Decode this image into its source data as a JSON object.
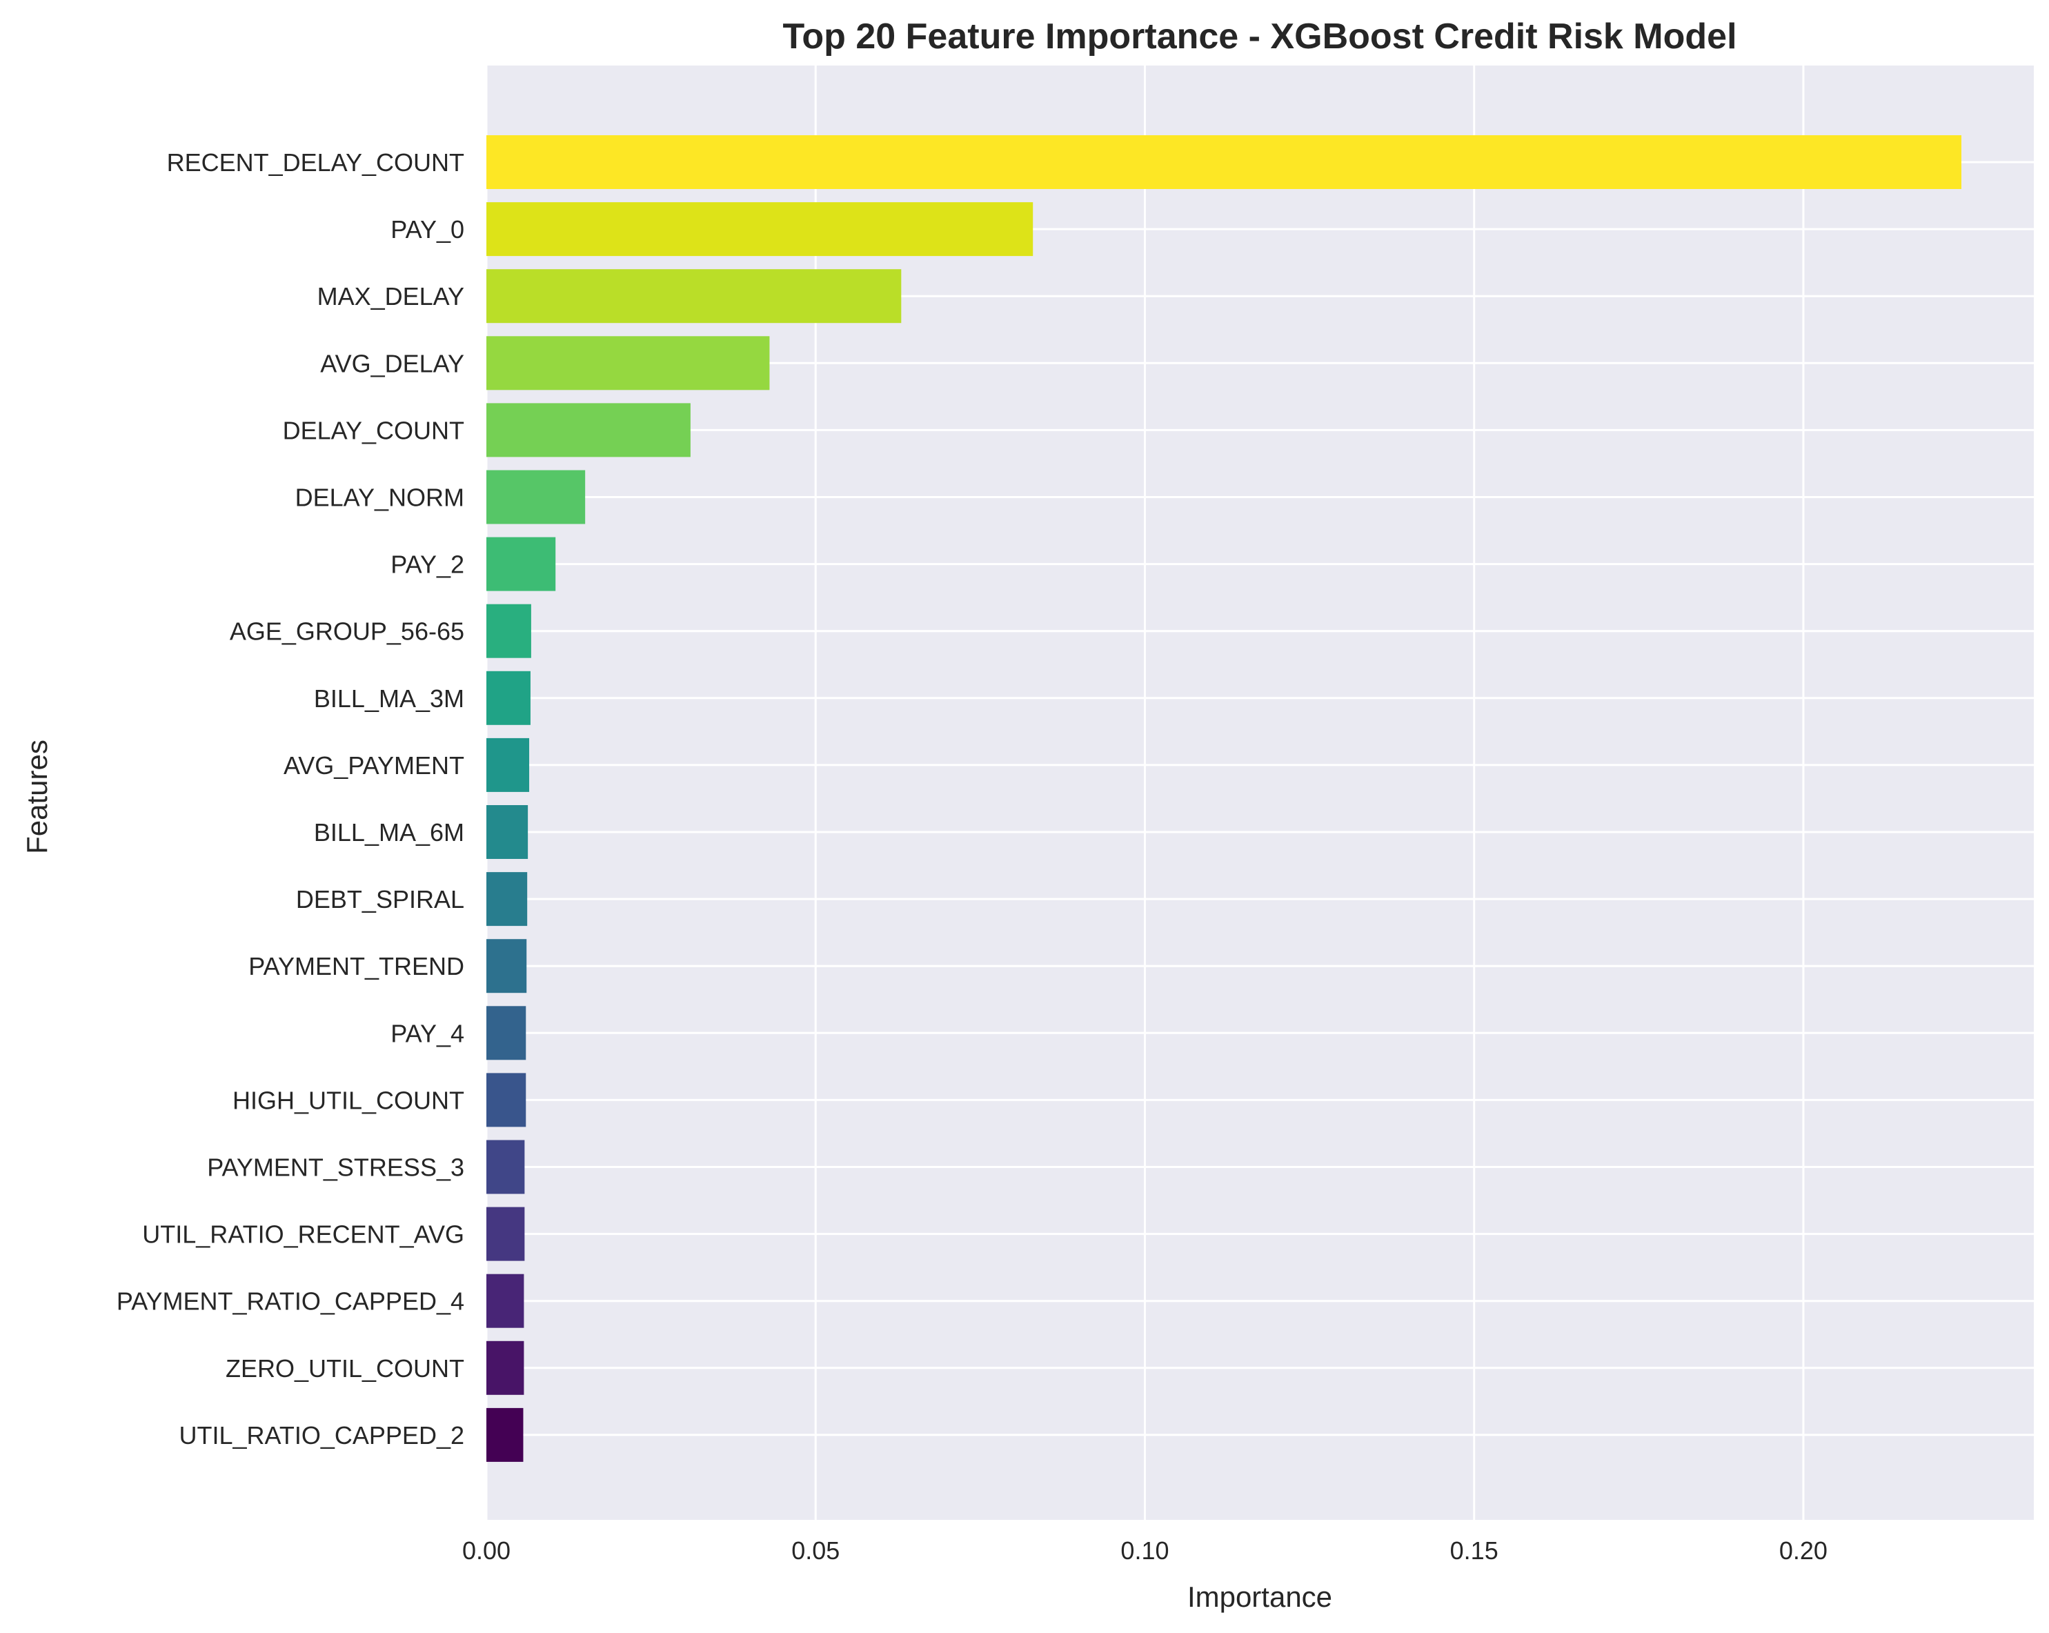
{
  "chart_data": {
    "type": "bar",
    "orientation": "horizontal",
    "title": "Top 20 Feature Importance - XGBoost Credit Risk Model",
    "xlabel": "Importance",
    "ylabel": "Features",
    "xlim": [
      0,
      0.235
    ],
    "x_ticks": [
      0.0,
      0.05,
      0.1,
      0.15,
      0.2
    ],
    "x_tick_labels": [
      "0.00",
      "0.05",
      "0.10",
      "0.15",
      "0.20"
    ],
    "grid": true,
    "legend": "none",
    "background_color": "#eaeaf2",
    "colormap": "viridis",
    "categories": [
      "RECENT_DELAY_COUNT",
      "PAY_0",
      "MAX_DELAY",
      "AVG_DELAY",
      "DELAY_COUNT",
      "DELAY_NORM",
      "PAY_2",
      "AGE_GROUP_56-65",
      "BILL_MA_3M",
      "AVG_PAYMENT",
      "BILL_MA_6M",
      "DEBT_SPIRAL",
      "PAYMENT_TREND",
      "PAY_4",
      "HIGH_UTIL_COUNT",
      "PAYMENT_STRESS_3",
      "UTIL_RATIO_RECENT_AVG",
      "PAYMENT_RATIO_CAPPED_4",
      "ZERO_UTIL_COUNT",
      "UTIL_RATIO_CAPPED_2"
    ],
    "values": [
      0.224,
      0.083,
      0.063,
      0.043,
      0.031,
      0.015,
      0.0105,
      0.0068,
      0.0067,
      0.0065,
      0.0063,
      0.0062,
      0.0061,
      0.006,
      0.006,
      0.0058,
      0.0058,
      0.0057,
      0.0057,
      0.0056
    ],
    "colors": [
      "#fde725",
      "#dde318",
      "#bade28",
      "#95d840",
      "#75d054",
      "#56c667",
      "#3dbc74",
      "#29af7f",
      "#20a386",
      "#1f968b",
      "#238a8d",
      "#287d8e",
      "#2d718e",
      "#33638d",
      "#39558c",
      "#404688",
      "#453781",
      "#482576",
      "#481467",
      "#440154"
    ]
  }
}
